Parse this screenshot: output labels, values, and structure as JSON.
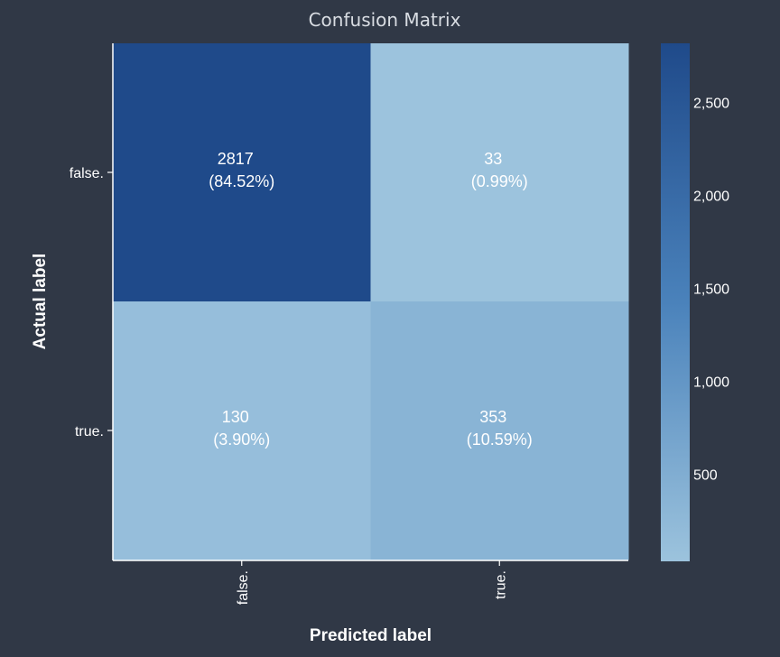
{
  "chart_data": {
    "type": "heatmap",
    "title": "Confusion Matrix",
    "xlabel": "Predicted label",
    "ylabel": "Actual label",
    "x_categories": [
      "false.",
      "true."
    ],
    "y_categories": [
      "false.",
      "true."
    ],
    "values": [
      [
        2817,
        33
      ],
      [
        130,
        353
      ]
    ],
    "percent_labels": [
      [
        "(84.52%)",
        "(0.99%)"
      ],
      [
        "(3.90%)",
        "(10.59%)"
      ]
    ],
    "colorbar": {
      "range": [
        33,
        2817
      ],
      "ticks": [
        500,
        1000,
        1500,
        2000,
        2500
      ],
      "tick_labels": [
        "500",
        "1,000",
        "1,500",
        "2,000",
        "2,500"
      ],
      "color_low": "#9cc3dd",
      "color_high": "#1f4a8a"
    },
    "background": "#303846",
    "text_color": "#ffffff"
  }
}
